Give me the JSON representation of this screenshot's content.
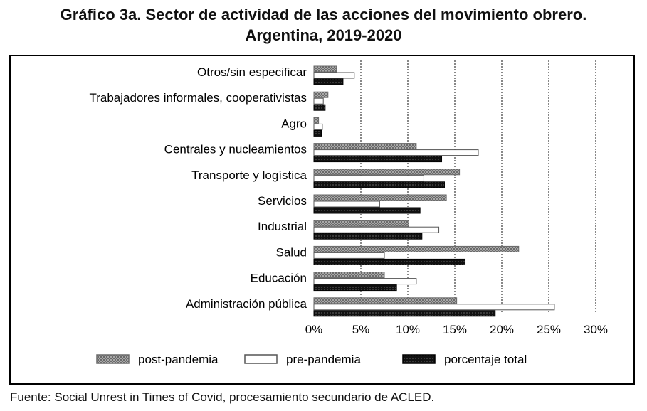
{
  "title_line1": "Gráfico 3a. Sector de actividad de las acciones del movimiento obrero.",
  "title_line2": "Argentina, 2019-2020",
  "source": "Fuente: Social Unrest in Times of Covid, procesamiento secundario de ACLED.",
  "colors": {
    "post-pandemia": "#a3a3a3",
    "pre-pandemia": "#ffffff",
    "porcentaje total": "#000000"
  },
  "chart_data": {
    "type": "bar",
    "orientation": "horizontal",
    "categories": [
      "Otros/sin especificar",
      "Trabajadores informales, cooperativistas",
      "Agro",
      "Centrales y nucleamientos",
      "Transporte y logística",
      "Servicios",
      "Industrial",
      "Salud",
      "Educación",
      "Administración pública"
    ],
    "series": [
      {
        "name": "post-pandemia",
        "values": [
          2.4,
          1.5,
          0.5,
          10.9,
          15.5,
          14.1,
          10.1,
          21.8,
          7.5,
          15.2
        ]
      },
      {
        "name": "pre-pandemia",
        "values": [
          4.3,
          1.0,
          0.9,
          17.5,
          11.7,
          7.0,
          13.3,
          7.5,
          10.9,
          25.6
        ]
      },
      {
        "name": "porcentaje total",
        "values": [
          3.1,
          1.2,
          0.8,
          13.6,
          13.9,
          11.3,
          11.5,
          16.1,
          8.8,
          19.3
        ]
      }
    ],
    "xlim": [
      0,
      30
    ],
    "ticks": [
      0,
      5,
      10,
      15,
      20,
      25,
      30
    ],
    "tick_labels": [
      "0%",
      "5%",
      "10%",
      "15%",
      "20%",
      "25%",
      "30%"
    ],
    "grid": "vertical dashed",
    "legend_position": "bottom",
    "xlabel": "",
    "ylabel": ""
  }
}
